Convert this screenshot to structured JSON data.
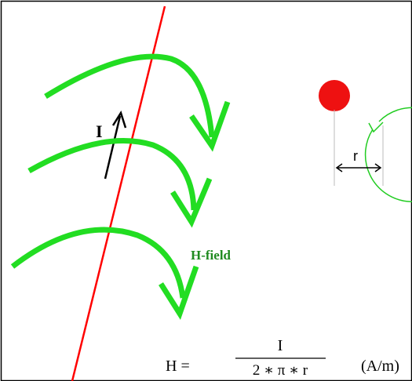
{
  "labels": {
    "current": "I",
    "field": "H-field",
    "radius": "r"
  },
  "formula": {
    "lhs": "H =",
    "numerator": "I",
    "denominator": "2 ∗ π ∗ r",
    "unit": "(A/m)"
  },
  "colors": {
    "wire": "#ff0000",
    "field": "#22dd22",
    "field_label": "#1f8a1f",
    "conductor": "#ee1111",
    "text": "#000000",
    "frame": "#000000"
  }
}
